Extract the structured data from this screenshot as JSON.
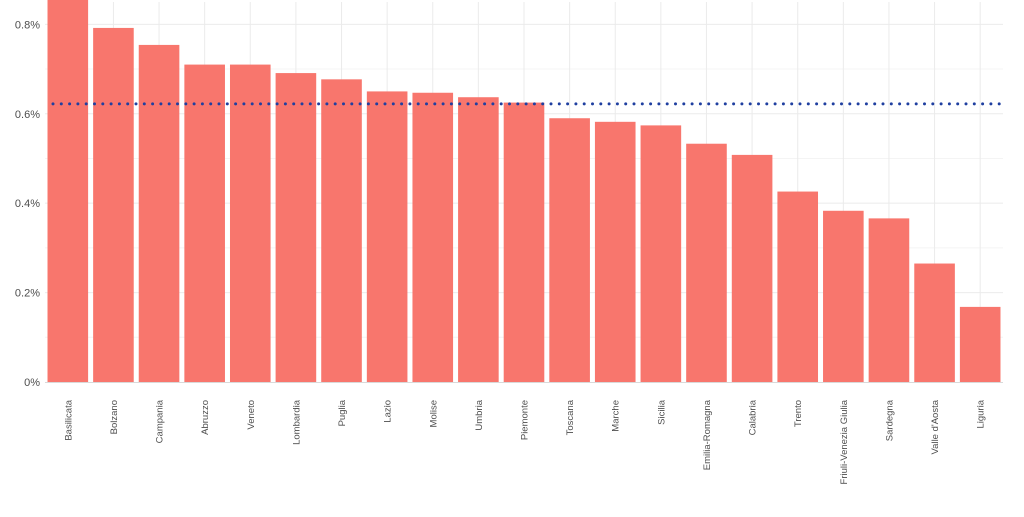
{
  "chart_data": {
    "type": "bar",
    "title": "",
    "xlabel": "",
    "ylabel": "",
    "categories": [
      "Basilicata",
      "Bolzano",
      "Campania",
      "Abruzzo",
      "Veneto",
      "Lombardia",
      "Puglia",
      "Lazio",
      "Molise",
      "Umbria",
      "Piemonte",
      "Toscana",
      "Marche",
      "Sicilia",
      "Emilia-Romagna",
      "Calabria",
      "Trento",
      "Friuli-Venezia Giulia",
      "Sardegna",
      "Valle d'Aosta",
      "Liguria"
    ],
    "values": [
      0.855,
      0.792,
      0.754,
      0.71,
      0.71,
      0.691,
      0.677,
      0.65,
      0.647,
      0.637,
      0.625,
      0.59,
      0.582,
      0.574,
      0.533,
      0.508,
      0.426,
      0.383,
      0.366,
      0.265,
      0.168
    ],
    "value_unit": "%",
    "ylim": [
      0,
      0.85
    ],
    "yticks": [
      0,
      0.2,
      0.4,
      0.6,
      0.8
    ],
    "ytick_labels": [
      "0%",
      "0.2%",
      "0.4%",
      "0.6%",
      "0.8%"
    ],
    "reference_line": {
      "value": 0.622,
      "style": "dotted"
    },
    "grid": true,
    "colors": {
      "bar": "#F8766D",
      "reference_line": "#1F3FA0",
      "grid": "#EBEBEB",
      "tick_text": "#4D4D4D",
      "axis": "#D9D9D9"
    }
  }
}
